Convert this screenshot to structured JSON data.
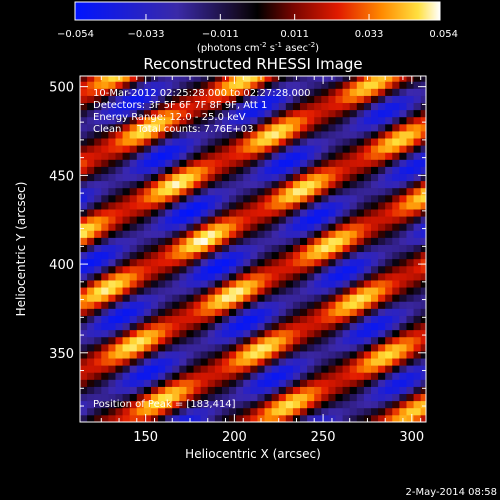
{
  "chart_data": {
    "type": "heatmap",
    "title": "Reconstructed RHESSI Image",
    "xlabel": "Heliocentric X (arcsec)",
    "ylabel": "Heliocentric Y (arcsec)",
    "xlim": [
      113,
      308
    ],
    "ylim": [
      311,
      506
    ],
    "x_ticks": [
      150,
      200,
      250,
      300
    ],
    "y_ticks": [
      350,
      400,
      450,
      500
    ],
    "colorbar": {
      "label_parts": [
        "(photons cm",
        "-2",
        " s",
        "-1",
        " asec",
        "-2",
        ")"
      ],
      "range": [
        -0.054,
        0.054
      ],
      "tick_values": [
        -0.054,
        -0.033,
        -0.011,
        0.011,
        0.033,
        0.054
      ],
      "tick_labels": [
        "−0.054",
        "−0.033",
        "−0.011",
        "0.011",
        "0.033",
        "0.054"
      ],
      "colormap": "rhessi-blue-black-red-yellow-white"
    },
    "annotations": [
      "10-Mar-2012 02:25:28.000 to 02:27:28.000",
      "Detectors: 3F 5F 6F 7F 8F 9F, Att 1",
      "Energy Range: 12.0 - 25.0 keV",
      "Clean     Total counts: 7.76E+03"
    ],
    "peak_label": "Position of Peak = [183,414]",
    "peak_position": [
      183,
      414
    ],
    "pattern": {
      "pixel_size_arcsec": 4,
      "fringe_direction_deg": 27,
      "fringe_period_arcsec": 35,
      "amplitude_max": 0.054
    },
    "timestamp": "2-May-2014 08:58"
  }
}
